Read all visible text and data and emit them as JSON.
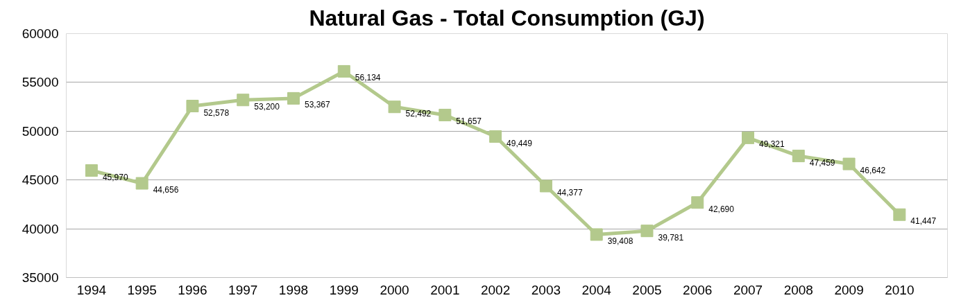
{
  "chart_data": {
    "type": "line",
    "title": "Natural Gas - Total Consumption (GJ)",
    "categories": [
      "1994",
      "1995",
      "1996",
      "1997",
      "1998",
      "1999",
      "2000",
      "2001",
      "2002",
      "2003",
      "2004",
      "2005",
      "2006",
      "2007",
      "2008",
      "2009",
      "2010"
    ],
    "series": [
      {
        "color": "#b3c98c",
        "values": [
          45970,
          44656,
          52578,
          53200,
          53367,
          56134,
          52492,
          51657,
          49449,
          44377,
          39408,
          39781,
          42690,
          49321,
          47459,
          46642,
          41447
        ],
        "value_labels": [
          "45,970",
          "44,656",
          "52,578",
          "53,200",
          "53,367",
          "56,134",
          "52,492",
          "51,657",
          "49,449",
          "44,377",
          "39,408",
          "39,781",
          "42,690",
          "49,321",
          "47,459",
          "46,642",
          "41,447"
        ]
      }
    ],
    "ylim": [
      35000,
      60000
    ],
    "yticks": [
      35000,
      40000,
      45000,
      50000,
      55000,
      60000
    ],
    "grid": "y",
    "marker": "square",
    "line_style": "solid"
  }
}
